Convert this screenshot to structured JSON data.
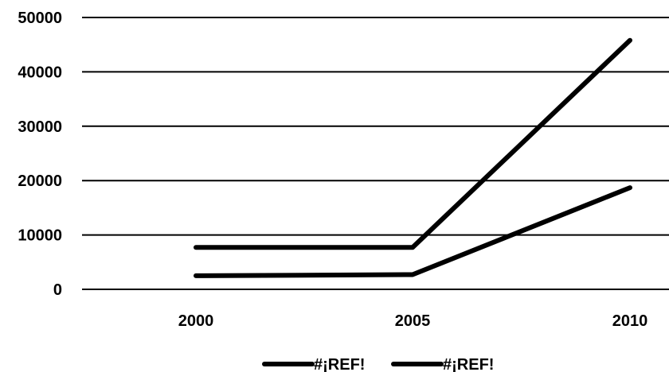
{
  "chart_data": {
    "type": "line",
    "x": [
      "2000",
      "2005",
      "2010"
    ],
    "ylim": [
      0,
      50000
    ],
    "yticks": [
      "0",
      "10000",
      "20000",
      "30000",
      "40000",
      "50000"
    ],
    "grid": true,
    "legend_position": "bottom",
    "series": [
      {
        "name": "#¡REF!",
        "values": [
          7700,
          7700,
          45800
        ],
        "color": "#000000"
      },
      {
        "name": "#¡REF!",
        "values": [
          2500,
          2700,
          18700
        ],
        "color": "#000000"
      }
    ]
  }
}
